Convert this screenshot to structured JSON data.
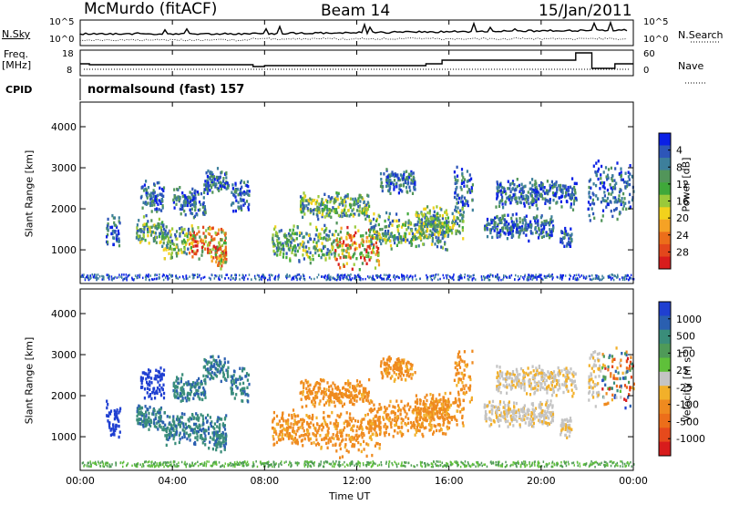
{
  "header": {
    "station": "McMurdo (fitACF)",
    "beam": "Beam 14",
    "date": "15/Jan/2011"
  },
  "noise_panel": {
    "left_label": "N.Sky",
    "right_label": "N.Search",
    "left_ticks": [
      "10^5",
      "10^0"
    ],
    "right_ticks": [
      "10^5",
      "10^0"
    ]
  },
  "freq_panel": {
    "left_label_line1": "Freq.",
    "left_label_line2": "[MHz]",
    "right_label": "Nave",
    "left_ticks": [
      "18",
      "8"
    ],
    "right_ticks": [
      "60",
      "0"
    ]
  },
  "cpid_panel": {
    "label": "CPID",
    "program": "normalsound (fast) 157"
  },
  "chart_data": [
    {
      "type": "heatmap",
      "title": "",
      "quantity": "Power [dB]",
      "xlabel": "Time UT",
      "ylabel": "Slant Range [km]",
      "xlim_hours": [
        0,
        24
      ],
      "x_ticks": [
        "00:00",
        "04:00",
        "08:00",
        "12:00",
        "16:00",
        "20:00",
        "00:00"
      ],
      "ylim_km": [
        180,
        4600
      ],
      "y_ticks": [
        1000,
        2000,
        3000,
        4000
      ],
      "colorbar": {
        "label": "Power [dB]",
        "ticks": [
          "4",
          "8",
          "12",
          "16",
          "20",
          "24",
          "28"
        ],
        "colors": [
          "#0a20e6",
          "#2d56b8",
          "#3d7f9b",
          "#52955a",
          "#3fa83a",
          "#9ac93a",
          "#f2d21c",
          "#f5a225",
          "#ec6e1a",
          "#e3471c",
          "#d81c1c"
        ]
      }
    },
    {
      "type": "heatmap",
      "title": "",
      "quantity": "Velocity [m s^-1]",
      "xlabel": "Time UT",
      "ylabel": "Slant Range [km]",
      "xlim_hours": [
        0,
        24
      ],
      "x_ticks": [
        "00:00",
        "04:00",
        "08:00",
        "12:00",
        "16:00",
        "20:00",
        "00:00"
      ],
      "ylim_km": [
        180,
        4600
      ],
      "y_ticks": [
        1000,
        2000,
        3000,
        4000
      ],
      "colorbar": {
        "label": "Velocity [m s",
        "label_sup": "-1",
        "label_end": "]",
        "ticks": [
          "1000",
          "500",
          "100",
          "25",
          "-25",
          "-100",
          "-500",
          "-1000"
        ],
        "colors": [
          "#1f3fd1",
          "#2a5fb0",
          "#3a8d7a",
          "#4f9a58",
          "#5fc03a",
          "#c4c4c4",
          "#f2b02a",
          "#ef8a1f",
          "#ec6e1a",
          "#e64a1c",
          "#d81c1c"
        ]
      }
    }
  ],
  "axes": {
    "xlabel": "Time UT",
    "ylabel": "Slant Range [km]"
  }
}
